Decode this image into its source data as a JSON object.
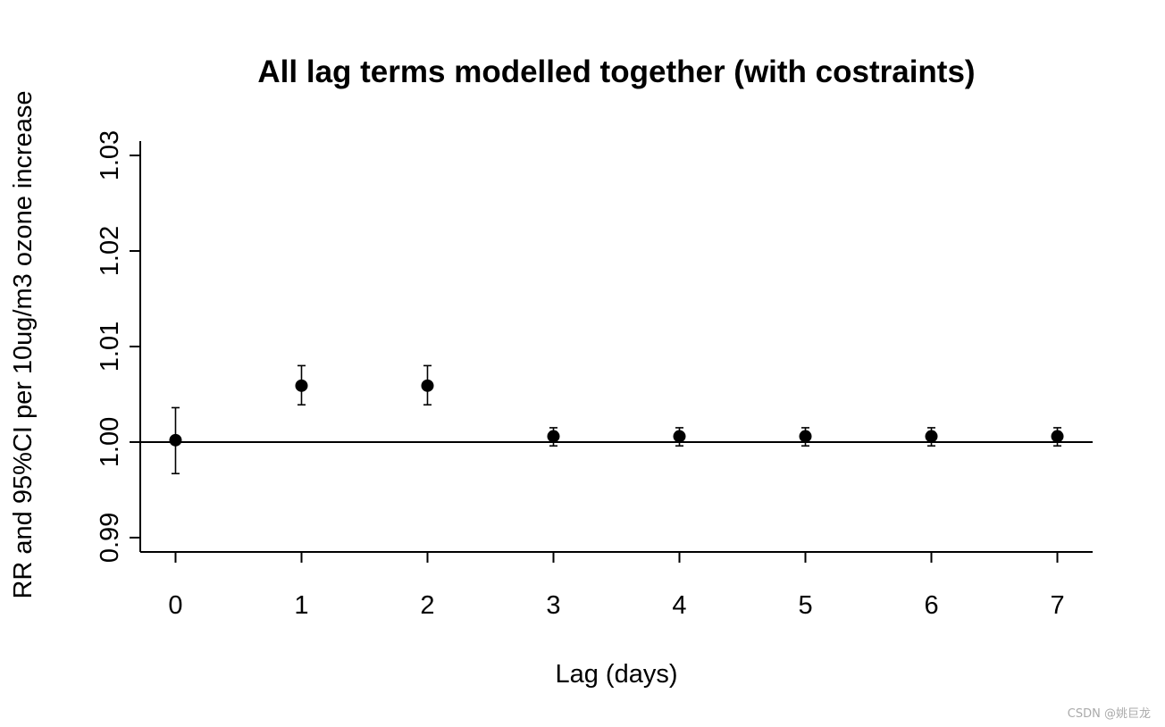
{
  "chart_data": {
    "type": "scatter",
    "title": "All lag terms modelled together (with costraints)",
    "xlabel": "Lag (days)",
    "ylabel": "RR and 95%CI per 10ug/m3 ozone increase",
    "x": [
      0,
      1,
      2,
      3,
      4,
      5,
      6,
      7
    ],
    "y": [
      1.0002,
      1.0059,
      1.0059,
      1.0006,
      1.0006,
      1.0006,
      1.0006,
      1.0006
    ],
    "ci_lower": [
      0.9967,
      1.0039,
      1.0039,
      0.9996,
      0.9996,
      0.9996,
      0.9996,
      0.9996
    ],
    "ci_upper": [
      1.0036,
      1.008,
      1.008,
      1.0015,
      1.0015,
      1.0015,
      1.0015,
      1.0015
    ],
    "xlim": [
      -0.28,
      7.28
    ],
    "ylim": [
      0.9885,
      1.0315
    ],
    "x_ticks": [
      0,
      1,
      2,
      3,
      4,
      5,
      6,
      7
    ],
    "x_tick_labels": [
      "0",
      "1",
      "2",
      "3",
      "4",
      "5",
      "6",
      "7"
    ],
    "y_ticks": [
      0.99,
      1.0,
      1.01,
      1.02,
      1.03
    ],
    "y_tick_labels": [
      "0.99",
      "1.00",
      "1.01",
      "1.02",
      "1.03"
    ],
    "reference_line": 1.0,
    "marker_color": "#000000",
    "grid": false,
    "legend": "none"
  },
  "watermark": "CSDN @姚巨龙"
}
